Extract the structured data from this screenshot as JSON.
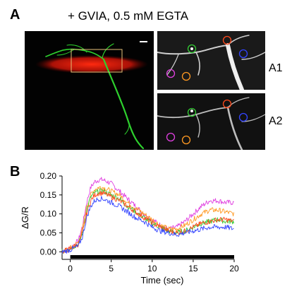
{
  "panel_a": {
    "letter": "A",
    "condition_title": "+ GVIA, 0.5 mM EGTA",
    "subpanel_labels": [
      "A1",
      "A2"
    ],
    "roi_colors": [
      "#33cc33",
      "#ff4a1c",
      "#3344ff",
      "#e040e0",
      "#ff9922"
    ]
  },
  "panel_b": {
    "letter": "B"
  },
  "chart_data": {
    "type": "line",
    "xlabel": "Time (sec)",
    "ylabel": "ΔG/R",
    "xlim": [
      -1,
      20
    ],
    "ylim": [
      -0.02,
      0.2
    ],
    "x_ticks": [
      0,
      5,
      10,
      15,
      20
    ],
    "y_ticks": [
      0.0,
      0.05,
      0.1,
      0.15,
      0.2
    ],
    "x_tick_labels": [
      "0",
      "5",
      "10",
      "15",
      "20"
    ],
    "y_tick_labels": [
      "0.00",
      "0.05",
      "0.10",
      "0.15",
      "0.20"
    ],
    "stimulus_bar": [
      0,
      20
    ],
    "x": [
      -1,
      0,
      1,
      1.5,
      2,
      2.5,
      3,
      3.5,
      4,
      4.5,
      5,
      5.5,
      6,
      7,
      8,
      9,
      10,
      11,
      12,
      13,
      14,
      15,
      16,
      17,
      18,
      19,
      20
    ],
    "series": [
      {
        "color": "#e040e0",
        "values": [
          0.0,
          0.01,
          0.03,
          0.07,
          0.13,
          0.17,
          0.185,
          0.19,
          0.19,
          0.185,
          0.18,
          0.17,
          0.16,
          0.14,
          0.12,
          0.1,
          0.085,
          0.07,
          0.06,
          0.065,
          0.08,
          0.1,
          0.12,
          0.135,
          0.135,
          0.13,
          0.13
        ]
      },
      {
        "color": "#ff9922",
        "values": [
          0.0,
          0.01,
          0.025,
          0.06,
          0.12,
          0.15,
          0.165,
          0.17,
          0.17,
          0.165,
          0.16,
          0.155,
          0.15,
          0.13,
          0.115,
          0.1,
          0.085,
          0.07,
          0.06,
          0.06,
          0.07,
          0.085,
          0.1,
          0.11,
          0.11,
          0.105,
          0.1
        ]
      },
      {
        "color": "#33cc33",
        "values": [
          0.0,
          0.01,
          0.02,
          0.05,
          0.11,
          0.145,
          0.155,
          0.16,
          0.16,
          0.155,
          0.15,
          0.145,
          0.14,
          0.12,
          0.105,
          0.09,
          0.075,
          0.065,
          0.055,
          0.05,
          0.055,
          0.065,
          0.075,
          0.08,
          0.085,
          0.08,
          0.08
        ]
      },
      {
        "color": "#ff4a1c",
        "values": [
          0.0,
          0.008,
          0.02,
          0.05,
          0.1,
          0.135,
          0.15,
          0.155,
          0.155,
          0.15,
          0.145,
          0.14,
          0.135,
          0.12,
          0.105,
          0.09,
          0.075,
          0.065,
          0.055,
          0.05,
          0.055,
          0.065,
          0.075,
          0.08,
          0.085,
          0.085,
          0.08
        ]
      },
      {
        "color": "#3344ff",
        "values": [
          0.0,
          0.005,
          0.015,
          0.04,
          0.09,
          0.12,
          0.135,
          0.14,
          0.14,
          0.135,
          0.13,
          0.125,
          0.12,
          0.105,
          0.09,
          0.08,
          0.065,
          0.055,
          0.05,
          0.045,
          0.05,
          0.055,
          0.06,
          0.065,
          0.065,
          0.065,
          0.06
        ]
      }
    ]
  }
}
